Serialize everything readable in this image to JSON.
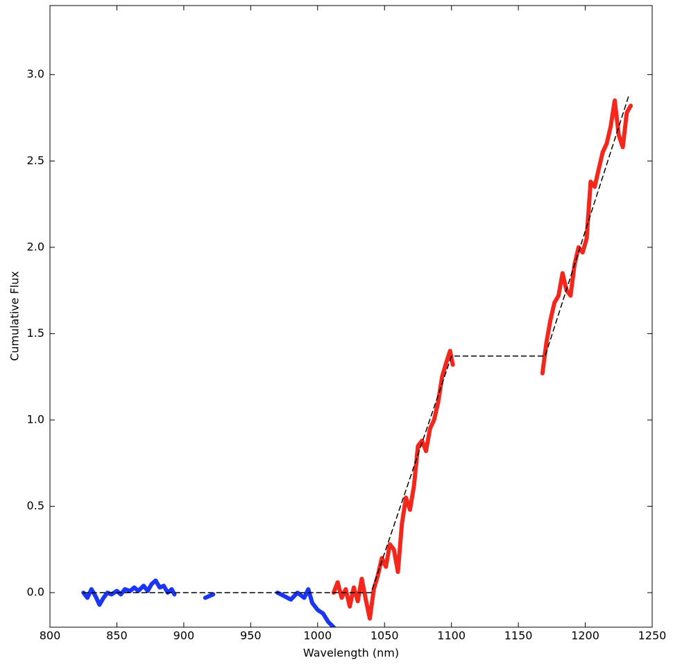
{
  "chart_data": {
    "type": "line",
    "x_label": "Wavelength (nm)",
    "y_label": "Cumulative Flux",
    "xlim": [
      800,
      1250
    ],
    "ylim": [
      -0.2,
      3.4
    ],
    "xticks": [
      800,
      850,
      900,
      950,
      1000,
      1050,
      1100,
      1150,
      1200,
      1250
    ],
    "yticks": [
      {
        "value": 0,
        "label": "0.0"
      },
      0.5,
      {
        "value": 1,
        "label": "1.0"
      },
      1.5,
      {
        "value": 2,
        "label": "2.0"
      },
      2.5,
      {
        "value": 3,
        "label": "3.0"
      }
    ],
    "grid": false,
    "series": [
      {
        "color": "#1a35f5",
        "linestyle": "solid",
        "x": [
          825,
          828,
          831,
          834,
          837,
          840,
          843,
          846,
          850,
          853,
          856,
          860,
          863,
          866,
          870,
          873,
          876,
          879,
          882,
          885,
          888,
          891,
          893,
          905,
          916,
          919,
          922,
          945,
          970,
          975,
          980,
          985,
          990,
          993,
          996,
          1000,
          1004,
          1008,
          1012
        ],
        "values": [
          0,
          -0.03,
          0.02,
          -0.02,
          -0.07,
          -0.03,
          0,
          -0.01,
          0.01,
          -0.01,
          0.02,
          0.01,
          0.03,
          0.01,
          0.04,
          0.01,
          0.05,
          0.07,
          0.03,
          0.04,
          0,
          0.02,
          -0.01,
          null,
          -0.03,
          -0.02,
          -0.01,
          null,
          0,
          -0.02,
          -0.04,
          0,
          -0.03,
          0.02,
          -0.06,
          -0.1,
          -0.12,
          -0.17,
          -0.2
        ]
      },
      {
        "color": "#f5261b",
        "linestyle": "solid",
        "x": [
          1012,
          1015,
          1018,
          1021,
          1024,
          1027,
          1030,
          1033,
          1036,
          1039,
          1042,
          1045,
          1048,
          1051,
          1054,
          1057,
          1060,
          1063,
          1066,
          1069,
          1072,
          1075,
          1078,
          1081,
          1084,
          1087,
          1090,
          1093,
          1096,
          1099,
          1101,
          1135,
          1168,
          1171,
          1174,
          1177,
          1180,
          1183,
          1186,
          1189,
          1192,
          1195,
          1198,
          1201,
          1204,
          1207,
          1210,
          1213,
          1216,
          1219,
          1222,
          1225,
          1228,
          1231,
          1234
        ],
        "values": [
          0,
          0.06,
          -0.03,
          0.02,
          -0.08,
          0.03,
          -0.05,
          0.08,
          -0.04,
          -0.15,
          0.02,
          0.1,
          0.2,
          0.15,
          0.28,
          0.25,
          0.12,
          0.4,
          0.55,
          0.48,
          0.62,
          0.85,
          0.88,
          0.82,
          0.95,
          1.0,
          1.1,
          1.25,
          1.33,
          1.4,
          1.32,
          null,
          1.27,
          1.45,
          1.58,
          1.68,
          1.72,
          1.85,
          1.75,
          1.72,
          1.9,
          2.0,
          1.97,
          2.05,
          2.38,
          2.35,
          2.45,
          2.55,
          2.6,
          2.7,
          2.85,
          2.65,
          2.58,
          2.78,
          2.82
        ]
      },
      {
        "color": "#000000",
        "linestyle": "dashed",
        "x": [
          825,
          1040,
          1100,
          1170,
          1233
        ],
        "values": [
          0,
          0,
          1.37,
          1.37,
          2.89
        ]
      }
    ]
  }
}
